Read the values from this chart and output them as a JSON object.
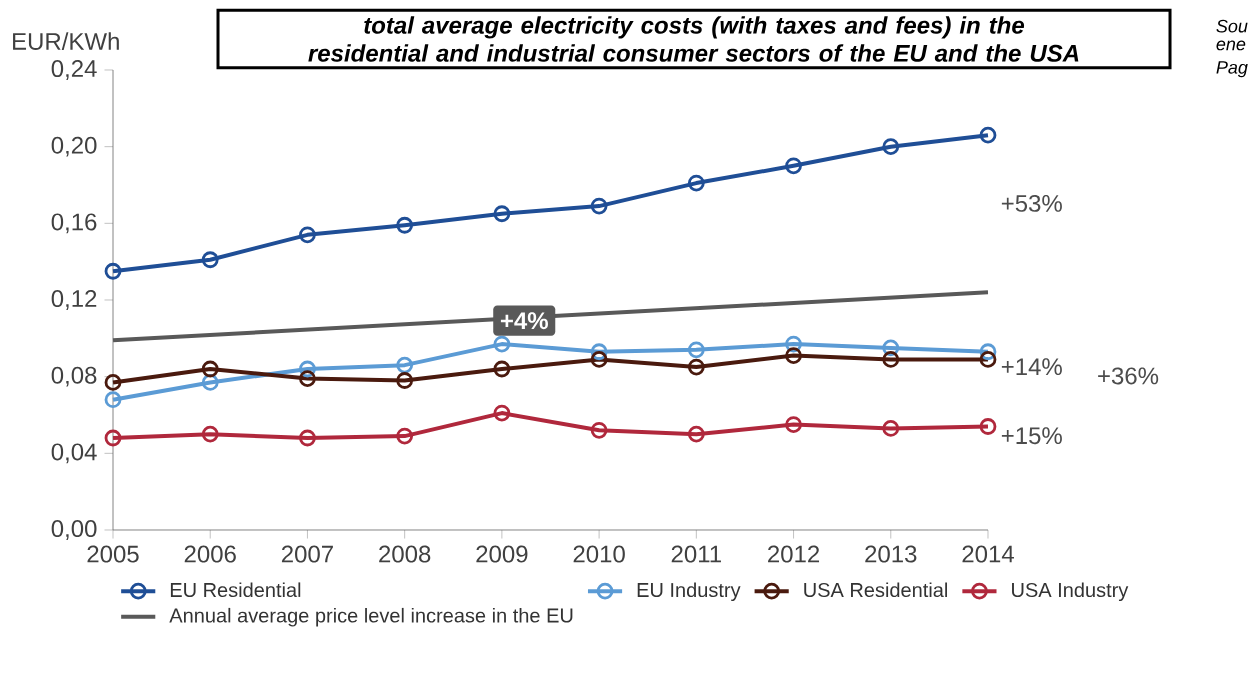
{
  "chart_data": {
    "type": "line",
    "title": "total average electricity costs (with taxes and fees) in the residential and industrial consumer sectors of the EU and the USA",
    "ylabel": "EUR/KWh",
    "x": [
      2005,
      2006,
      2007,
      2008,
      2009,
      2010,
      2011,
      2012,
      2013,
      2014
    ],
    "xlim": [
      2005,
      2014
    ],
    "xticks": [
      2005,
      2006,
      2007,
      2008,
      2009,
      2010,
      2011,
      2012,
      2013,
      2014
    ],
    "ylim": [
      0,
      0.24
    ],
    "yticks": [
      {
        "value": 0,
        "label": "0,00"
      },
      {
        "value": 0.04,
        "label": "0,04"
      },
      {
        "value": 0.08,
        "label": "0,08"
      },
      {
        "value": 0.12,
        "label": "0,12"
      },
      {
        "value": 0.16,
        "label": "0,16"
      },
      {
        "value": 0.2,
        "label": "0,20"
      },
      {
        "value": 0.24,
        "label": "0,24"
      }
    ],
    "marker": "circle",
    "grid": false,
    "legend": "bottom",
    "series": [
      {
        "name": "EU Residential",
        "color": "#1f4e96",
        "values": [
          0.135,
          0.141,
          0.154,
          0.159,
          0.165,
          0.169,
          0.181,
          0.19,
          0.2,
          0.206
        ]
      },
      {
        "name": "EU Industry",
        "color": "#5b9bd5",
        "values": [
          0.068,
          0.077,
          0.084,
          0.086,
          0.097,
          0.093,
          0.094,
          0.097,
          0.095,
          0.093
        ]
      },
      {
        "name": "USA Residential",
        "color": "#4a1a0e",
        "values": [
          0.077,
          0.084,
          0.079,
          0.078,
          0.084,
          0.089,
          0.085,
          0.091,
          0.089,
          0.089
        ]
      },
      {
        "name": "USA Industry",
        "color": "#b0283c",
        "values": [
          0.048,
          0.05,
          0.048,
          0.049,
          0.061,
          0.052,
          0.05,
          0.055,
          0.053,
          0.054
        ]
      },
      {
        "name": "Annual average price level increase in the EU",
        "color": "#595959",
        "marker": "none",
        "x": [
          2005,
          2014
        ],
        "values": [
          0.099,
          0.124
        ]
      }
    ],
    "annotations": [
      "+53%",
      "+14%",
      "+36%",
      "+15%",
      "+4%",
      "Sou",
      "ene",
      "Pag"
    ]
  }
}
